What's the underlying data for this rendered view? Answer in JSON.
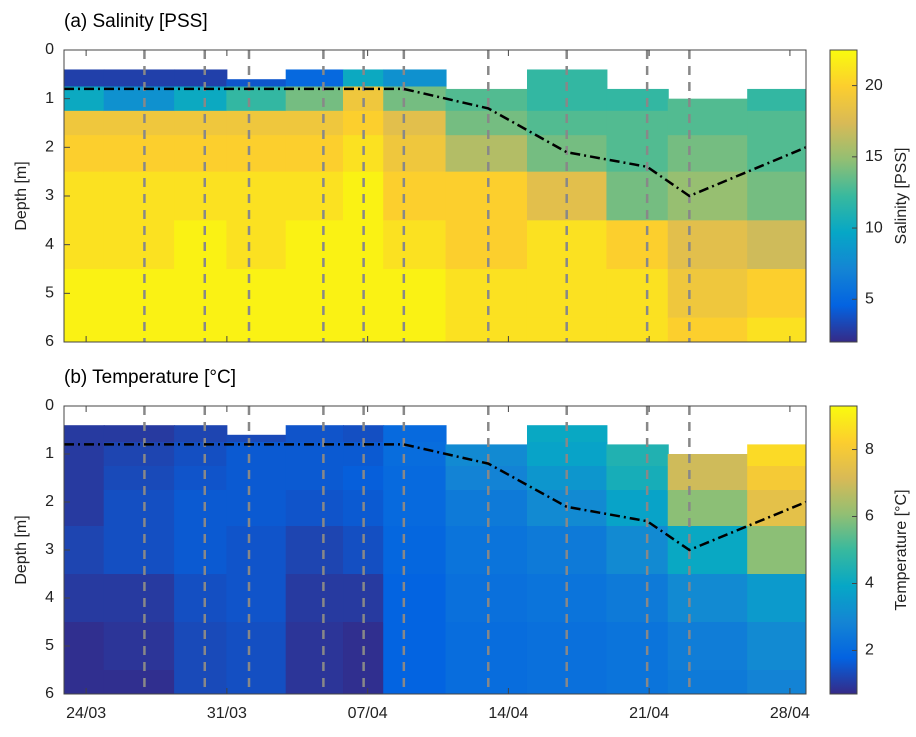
{
  "chart_data": [
    {
      "type": "field",
      "title": "(a) Salinity [PSS]",
      "y_label": "Depth [m]",
      "colorbar_label": "Salinity [PSS]",
      "xlim": [
        -1.1,
        35.8
      ],
      "xticks": [
        0,
        7,
        14,
        21,
        28,
        35
      ],
      "ylim": [
        0,
        6
      ],
      "yticks": [
        0,
        1,
        2,
        3,
        4,
        5,
        6
      ],
      "clim": [
        2,
        22.5
      ],
      "cticks": [
        5,
        10,
        15,
        20
      ],
      "colormap": [
        "#352a87",
        "#0363e1",
        "#1485d4",
        "#06a7c6",
        "#38b99e",
        "#92bf73",
        "#d9ba56",
        "#fcce2e",
        "#f9fb0e"
      ],
      "x": [
        -1.1,
        2.9,
        5.9,
        8.1,
        11.8,
        13.8,
        15.8,
        20.0,
        23.9,
        27.9,
        30.0,
        35.8
      ],
      "surface": [
        0.4,
        0.4,
        0.4,
        0.6,
        0.4,
        0.4,
        0.4,
        0.8,
        0.4,
        0.8,
        1.0,
        0.8
      ],
      "depths": [
        0.5,
        1,
        1.5,
        2,
        3,
        4,
        5,
        6
      ],
      "values": [
        [
          3,
          10,
          19,
          20,
          21,
          21,
          22,
          22
        ],
        [
          3,
          8,
          19,
          20,
          21,
          21,
          22,
          22
        ],
        [
          3,
          10,
          19,
          20,
          21,
          22,
          22,
          22
        ],
        [
          4,
          12,
          19,
          20,
          21,
          21,
          22,
          22
        ],
        [
          5,
          14,
          19,
          20,
          21,
          22,
          22,
          22
        ],
        [
          10,
          19,
          20,
          21,
          22,
          22,
          22,
          22
        ],
        [
          8,
          14,
          18,
          19,
          20,
          21,
          22,
          22
        ],
        [
          null,
          13,
          14,
          16,
          20,
          20,
          21,
          21
        ],
        [
          12,
          12,
          13,
          14,
          18,
          21,
          21,
          21
        ],
        [
          null,
          12,
          13,
          13,
          14,
          20,
          21,
          21
        ],
        [
          null,
          null,
          13,
          14,
          15,
          18,
          19,
          20
        ],
        [
          null,
          12,
          13,
          13,
          14,
          17,
          20,
          21
        ]
      ],
      "sampling_days": [
        2.9,
        5.9,
        8.1,
        11.8,
        13.8,
        15.8,
        20.0,
        23.9,
        27.9,
        30.0
      ],
      "line_x": [
        -1.1,
        15.8,
        20.0,
        23.9,
        27.9,
        30.0,
        35.8
      ],
      "line_y": [
        0.8,
        0.8,
        1.2,
        2.1,
        2.4,
        3.0,
        2.0
      ]
    },
    {
      "type": "field",
      "title": "(b) Temperature [°C]",
      "y_label": "Depth [m]",
      "colorbar_label": "Temperature [°C]",
      "xlim": [
        -1.1,
        35.8
      ],
      "xticks": [
        {
          "value": 0,
          "label": "24/03"
        },
        {
          "value": 7,
          "label": "31/03"
        },
        {
          "value": 14,
          "label": "07/04"
        },
        {
          "value": 21,
          "label": "14/04"
        },
        {
          "value": 28,
          "label": "21/04"
        },
        {
          "value": 35,
          "label": "28/04"
        }
      ],
      "ylim": [
        0,
        6
      ],
      "yticks": [
        0,
        1,
        2,
        3,
        4,
        5,
        6
      ],
      "clim": [
        0.7,
        9.3
      ],
      "cticks": [
        2,
        4,
        6,
        8
      ],
      "colormap": [
        "#352a87",
        "#0363e1",
        "#1485d4",
        "#06a7c6",
        "#38b99e",
        "#92bf73",
        "#d9ba56",
        "#fcce2e",
        "#f9fb0e"
      ],
      "x": [
        -1.1,
        2.9,
        5.9,
        8.1,
        11.8,
        13.8,
        15.8,
        20.0,
        23.9,
        27.9,
        30.0,
        35.8
      ],
      "surface": [
        0.4,
        0.4,
        0.4,
        0.6,
        0.4,
        0.4,
        0.4,
        0.8,
        0.4,
        0.8,
        1.0,
        0.8
      ],
      "depths": [
        0.5,
        1,
        1.5,
        2,
        3,
        4,
        5,
        6
      ],
      "values": [
        [
          1,
          1,
          1,
          1,
          1.2,
          1,
          0.8,
          0.8
        ],
        [
          1,
          1.2,
          1.3,
          1.4,
          1.4,
          1,
          0.9,
          0.8
        ],
        [
          1.2,
          1.4,
          1.5,
          1.6,
          1.6,
          1.4,
          1.3,
          1.3
        ],
        [
          1.3,
          1.6,
          1.6,
          1.6,
          1.5,
          1.5,
          1.4,
          1.4
        ],
        [
          1.5,
          1.6,
          1.6,
          1.5,
          1.2,
          1.0,
          0.9,
          0.9
        ],
        [
          1.4,
          1.6,
          1.7,
          1.6,
          1.4,
          1.0,
          0.8,
          0.8
        ],
        [
          2,
          2.1,
          2,
          2,
          1.9,
          1.8,
          1.8,
          1.8
        ],
        [
          null,
          3,
          2.8,
          2.5,
          2.3,
          2.2,
          2.1,
          2.1
        ],
        [
          4,
          3.8,
          3.4,
          3,
          2.5,
          2.3,
          2.2,
          2.2
        ],
        [
          null,
          4.5,
          4.3,
          3.8,
          3,
          2.5,
          2.3,
          2.3
        ],
        [
          null,
          null,
          7,
          6,
          4,
          3,
          2.6,
          2.5
        ],
        [
          null,
          8.5,
          8,
          7.5,
          6,
          3.5,
          3,
          2.8
        ]
      ],
      "sampling_days": [
        2.9,
        5.9,
        8.1,
        11.8,
        13.8,
        15.8,
        20.0,
        23.9,
        27.9,
        30.0
      ],
      "line_x": [
        -1.1,
        15.8,
        20.0,
        23.9,
        27.9,
        30.0,
        35.8
      ],
      "line_y": [
        0.8,
        0.8,
        1.2,
        2.1,
        2.4,
        3.0,
        2.0
      ]
    }
  ]
}
